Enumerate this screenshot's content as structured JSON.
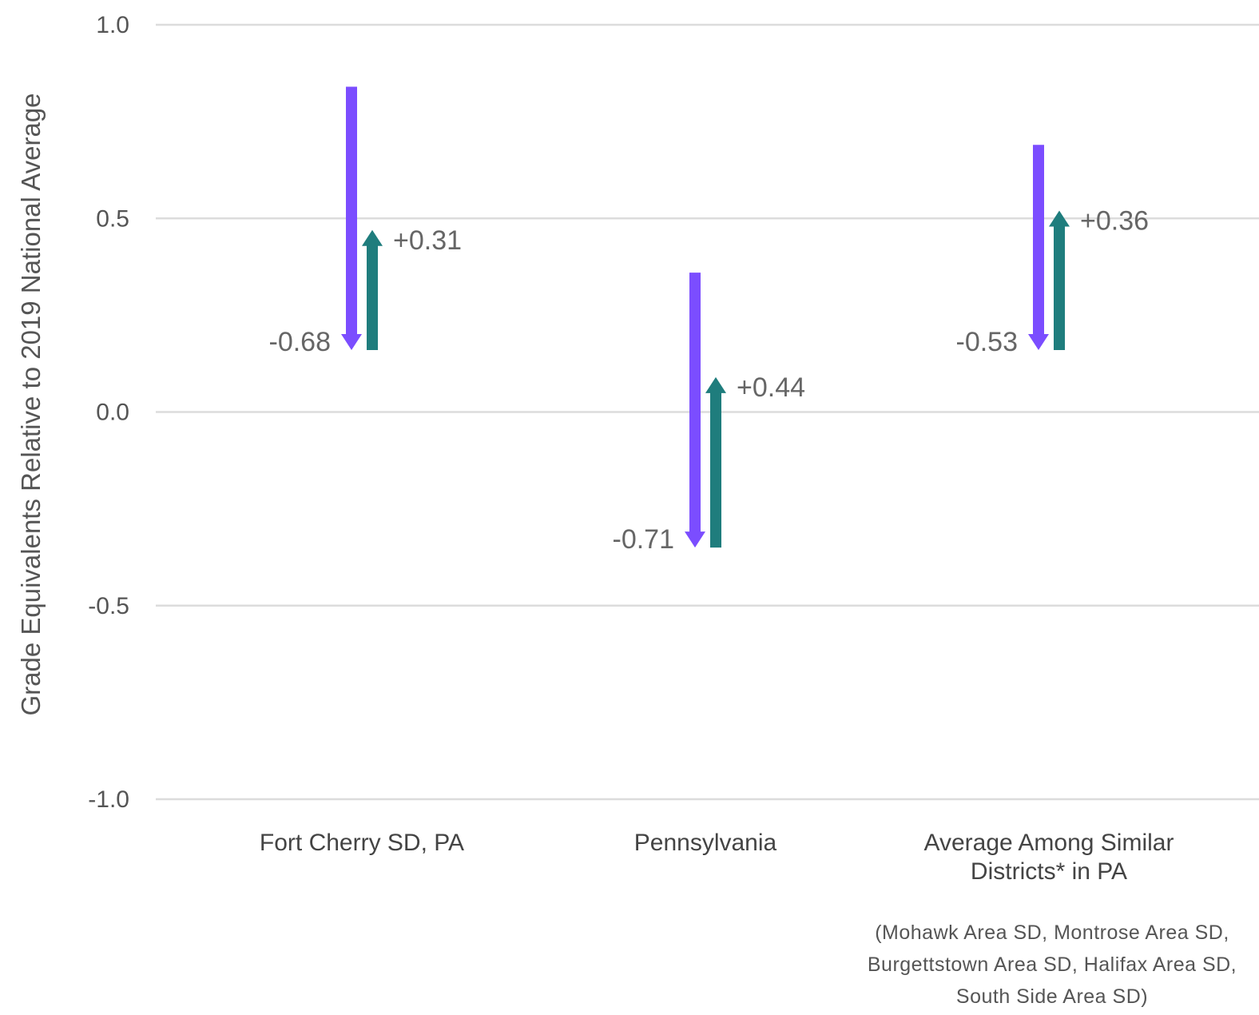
{
  "chart_data": {
    "type": "arrow",
    "ylabel": "Grade Equivalents Relative to 2019 National Average",
    "ylim": [
      -1.0,
      1.0
    ],
    "yticks": [
      1.0,
      0.5,
      0.0,
      -0.5,
      -1.0
    ],
    "ytick_labels": [
      "1.0",
      "0.5",
      "0.0",
      "-0.5",
      "-1.0"
    ],
    "grid": true,
    "categories": [
      {
        "lines": [
          "Fort Cherry SD, PA"
        ]
      },
      {
        "lines": [
          "Pennsylvania"
        ]
      },
      {
        "lines": [
          "Average Among Similar",
          "Districts* in PA"
        ]
      }
    ],
    "series": [
      {
        "color": "#7b4dff",
        "direction": "down",
        "start": [
          0.84,
          0.36,
          0.69
        ],
        "end": [
          0.16,
          -0.35,
          0.16
        ],
        "labels": [
          "-0.68",
          "-0.71",
          "-0.53"
        ]
      },
      {
        "color": "#1f7d7d",
        "direction": "up",
        "start": [
          0.16,
          -0.35,
          0.16
        ],
        "end": [
          0.47,
          0.09,
          0.52
        ],
        "labels": [
          "+0.31",
          "+0.44",
          "+0.36"
        ]
      }
    ],
    "footnote": [
      "(Mohawk Area SD, Montrose Area SD,",
      "Burgettstown Area SD, Halifax Area SD,",
      "South Side Area SD)"
    ]
  }
}
